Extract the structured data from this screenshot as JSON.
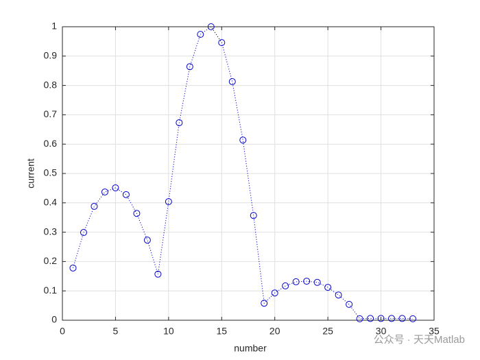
{
  "chart_data": {
    "type": "line",
    "xlabel": "number",
    "ylabel": "current",
    "x": [
      1,
      2,
      3,
      4,
      5,
      6,
      7,
      8,
      9,
      10,
      11,
      12,
      13,
      14,
      15,
      16,
      17,
      18,
      19,
      20,
      21,
      22,
      23,
      24,
      25,
      26,
      27,
      28,
      29,
      30,
      31,
      32,
      33
    ],
    "series": [
      {
        "name": "current",
        "color": "#0000cc",
        "marker": "circle",
        "linestyle": "dotted",
        "values": [
          0.178,
          0.299,
          0.388,
          0.437,
          0.451,
          0.428,
          0.364,
          0.273,
          0.157,
          0.404,
          0.673,
          0.864,
          0.974,
          1.0,
          0.946,
          0.813,
          0.614,
          0.357,
          0.058,
          0.093,
          0.117,
          0.131,
          0.133,
          0.129,
          0.112,
          0.086,
          0.054,
          0.005,
          0.006,
          0.006,
          0.006,
          0.006,
          0.005
        ]
      }
    ],
    "xlim": [
      0,
      35
    ],
    "xticks": [
      0,
      5,
      10,
      15,
      20,
      25,
      30,
      35
    ],
    "ylim": [
      0,
      1
    ],
    "yticks": [
      0,
      0.1,
      0.2,
      0.3,
      0.4,
      0.5,
      0.6,
      0.7,
      0.8,
      0.9,
      1
    ],
    "grid": true,
    "watermark": "公众号 · 天天Matlab"
  }
}
